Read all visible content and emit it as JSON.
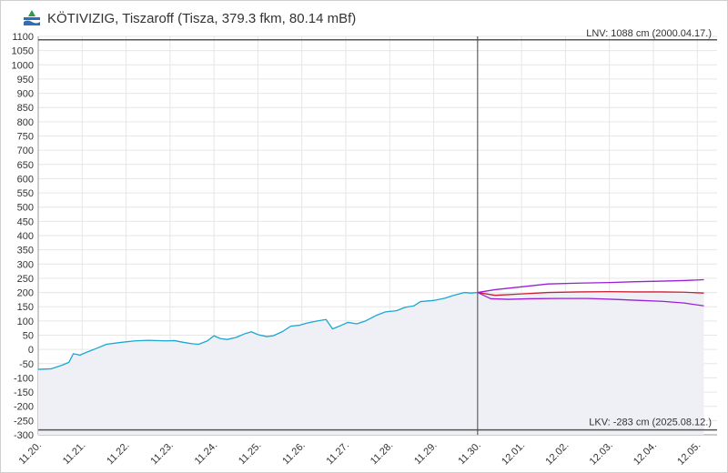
{
  "header": {
    "title": "KÖTIVIZIG, Tiszaroff (Tisza, 379.3 fkm, 80.14 mBf)",
    "logo_icon": "kotivizig-logo-icon"
  },
  "reference_lines": {
    "lnv_label": "LNV: 1088 cm (2000.04.17.)",
    "lkv_label": "LKV: -283 cm (2025.08.12.)",
    "lnv_value": 1088,
    "lkv_value": -283
  },
  "colors": {
    "measured": "#1aa7d6",
    "area_fill": "#eef0f6",
    "forecast_mid": "#cc1f33",
    "forecast_band": "#9a1fd6",
    "grid": "#e6e6e6",
    "ref_line": "#555555",
    "now_line": "#444444"
  },
  "chart_data": {
    "type": "line",
    "ylim": [
      -300,
      1100
    ],
    "yticks": [
      1100,
      1050,
      1000,
      950,
      900,
      850,
      800,
      750,
      700,
      650,
      600,
      550,
      500,
      450,
      400,
      350,
      300,
      250,
      200,
      150,
      100,
      50,
      0,
      -50,
      -100,
      -150,
      -200,
      -250,
      -300
    ],
    "x_unit": "days from 11.20.",
    "xlim": [
      0,
      15.45
    ],
    "xticks": [
      {
        "x": 0,
        "label": "11.20."
      },
      {
        "x": 1,
        "label": "11.21."
      },
      {
        "x": 2,
        "label": "11.22."
      },
      {
        "x": 3,
        "label": "11.23."
      },
      {
        "x": 4,
        "label": "11.24."
      },
      {
        "x": 5,
        "label": "11.25."
      },
      {
        "x": 6,
        "label": "11.26."
      },
      {
        "x": 7,
        "label": "11.27."
      },
      {
        "x": 8,
        "label": "11.28."
      },
      {
        "x": 9,
        "label": "11.29."
      },
      {
        "x": 10,
        "label": "11.30."
      },
      {
        "x": 11,
        "label": "12.01."
      },
      {
        "x": 12,
        "label": "12.02."
      },
      {
        "x": 13,
        "label": "12.03."
      },
      {
        "x": 14,
        "label": "12.04."
      },
      {
        "x": 15,
        "label": "12.05."
      }
    ],
    "now_x": 10,
    "series": [
      {
        "id": "measured",
        "points": [
          [
            0,
            -70
          ],
          [
            0.3,
            -68
          ],
          [
            0.55,
            -55
          ],
          [
            0.7,
            -45
          ],
          [
            0.8,
            -15
          ],
          [
            0.95,
            -20
          ],
          [
            1.1,
            -10
          ],
          [
            1.35,
            5
          ],
          [
            1.55,
            18
          ],
          [
            1.9,
            25
          ],
          [
            2.2,
            30
          ],
          [
            2.5,
            32
          ],
          [
            2.9,
            30
          ],
          [
            3.1,
            31
          ],
          [
            3.3,
            25
          ],
          [
            3.5,
            20
          ],
          [
            3.65,
            18
          ],
          [
            3.85,
            30
          ],
          [
            4.0,
            48
          ],
          [
            4.15,
            38
          ],
          [
            4.3,
            35
          ],
          [
            4.5,
            42
          ],
          [
            4.7,
            55
          ],
          [
            4.85,
            62
          ],
          [
            5.0,
            52
          ],
          [
            5.2,
            45
          ],
          [
            5.35,
            48
          ],
          [
            5.55,
            62
          ],
          [
            5.75,
            82
          ],
          [
            5.95,
            85
          ],
          [
            6.1,
            92
          ],
          [
            6.35,
            100
          ],
          [
            6.55,
            105
          ],
          [
            6.7,
            72
          ],
          [
            6.9,
            85
          ],
          [
            7.05,
            95
          ],
          [
            7.25,
            90
          ],
          [
            7.45,
            100
          ],
          [
            7.7,
            120
          ],
          [
            7.9,
            132
          ],
          [
            8.15,
            136
          ],
          [
            8.35,
            148
          ],
          [
            8.55,
            153
          ],
          [
            8.7,
            168
          ],
          [
            9.0,
            172
          ],
          [
            9.25,
            180
          ],
          [
            9.45,
            190
          ],
          [
            9.7,
            200
          ],
          [
            9.85,
            198
          ],
          [
            10,
            200
          ]
        ]
      },
      {
        "id": "forecast_upper",
        "points": [
          [
            10,
            200
          ],
          [
            10.4,
            210
          ],
          [
            11,
            220
          ],
          [
            11.6,
            230
          ],
          [
            12.3,
            233
          ],
          [
            13,
            235
          ],
          [
            13.6,
            238
          ],
          [
            14.2,
            240
          ],
          [
            14.7,
            242
          ],
          [
            15.15,
            245
          ]
        ]
      },
      {
        "id": "forecast_mid",
        "points": [
          [
            10,
            200
          ],
          [
            10.4,
            190
          ],
          [
            11,
            195
          ],
          [
            11.6,
            200
          ],
          [
            12.3,
            202
          ],
          [
            13,
            203
          ],
          [
            13.6,
            202
          ],
          [
            14.2,
            202
          ],
          [
            14.7,
            201
          ],
          [
            15.15,
            198
          ]
        ]
      },
      {
        "id": "forecast_lower",
        "points": [
          [
            10,
            200
          ],
          [
            10.3,
            178
          ],
          [
            10.7,
            176
          ],
          [
            11.2,
            178
          ],
          [
            11.8,
            179
          ],
          [
            12.5,
            179
          ],
          [
            13.1,
            176
          ],
          [
            13.7,
            172
          ],
          [
            14.2,
            169
          ],
          [
            14.7,
            163
          ],
          [
            15.15,
            153
          ]
        ]
      }
    ]
  }
}
